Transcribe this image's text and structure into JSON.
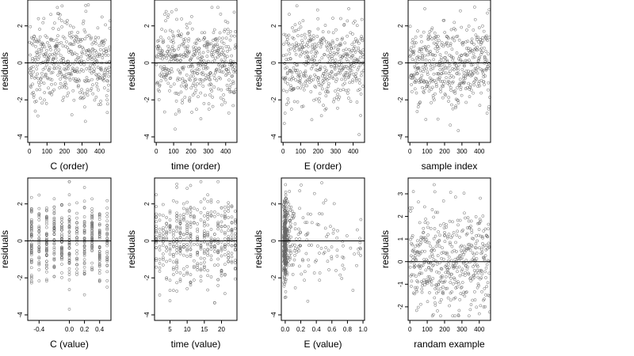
{
  "chart_data": [
    {
      "type": "scatter",
      "xlabel": "C (order)",
      "ylabel": "residuals",
      "xlim": [
        -10,
        465
      ],
      "ylim": [
        -4.3,
        3.4
      ],
      "xticks": [
        "0",
        "100",
        "200",
        "300",
        "400"
      ],
      "yticks": [
        "-4",
        "-2",
        "0",
        "2"
      ],
      "n_points": 460,
      "x_range": [
        1,
        460
      ],
      "y_range": [
        -4.1,
        3.2
      ],
      "x_kind": "index",
      "reference_line_y": 0
    },
    {
      "type": "scatter",
      "xlabel": "time (order)",
      "ylabel": "residuals",
      "xlim": [
        -10,
        465
      ],
      "ylim": [
        -4.3,
        3.4
      ],
      "xticks": [
        "0",
        "100",
        "200",
        "300",
        "400"
      ],
      "yticks": [
        "-4",
        "-2",
        "0",
        "2"
      ],
      "n_points": 460,
      "x_range": [
        1,
        460
      ],
      "y_range": [
        -4.0,
        3.0
      ],
      "x_kind": "index",
      "reference_line_y": 0
    },
    {
      "type": "scatter",
      "xlabel": "E (order)",
      "ylabel": "residuals",
      "xlim": [
        -10,
        465
      ],
      "ylim": [
        -4.3,
        3.4
      ],
      "xticks": [
        "0",
        "100",
        "200",
        "300",
        "400"
      ],
      "yticks": [
        "-4",
        "-2",
        "0",
        "2"
      ],
      "n_points": 460,
      "x_range": [
        1,
        460
      ],
      "y_range": [
        -4.0,
        3.2
      ],
      "x_kind": "index",
      "reference_line_y": 0
    },
    {
      "type": "scatter",
      "xlabel": "sample index",
      "ylabel": "residuals",
      "xlim": [
        -10,
        465
      ],
      "ylim": [
        -4.3,
        3.4
      ],
      "xticks": [
        "0",
        "100",
        "200",
        "300",
        "400"
      ],
      "yticks": [
        "-4",
        "-2",
        "0",
        "2"
      ],
      "n_points": 460,
      "x_range": [
        1,
        460
      ],
      "y_range": [
        -4.0,
        3.2
      ],
      "x_kind": "index",
      "reference_line_y": 0
    },
    {
      "type": "scatter",
      "xlabel": "C (value)",
      "ylabel": "residuals",
      "xlim": [
        -0.55,
        0.55
      ],
      "ylim": [
        -4.3,
        3.4
      ],
      "xticks": [
        "-0.4",
        "0.0",
        "0.2",
        "0.4"
      ],
      "yticks": [
        "-4",
        "-2",
        "0",
        "2"
      ],
      "n_points": 460,
      "x_range": [
        -0.5,
        0.5
      ],
      "y_range": [
        -4.0,
        3.2
      ],
      "x_kind": "levels",
      "x_levels": [
        -0.5,
        -0.4,
        -0.3,
        -0.2,
        -0.1,
        0.0,
        0.1,
        0.2,
        0.3,
        0.4,
        0.5
      ],
      "reference_line_y": 0
    },
    {
      "type": "scatter",
      "xlabel": "time (value)",
      "ylabel": "residuals",
      "xlim": [
        0.5,
        24.5
      ],
      "ylim": [
        -4.3,
        3.4
      ],
      "xticks": [
        "5",
        "10",
        "15",
        "20"
      ],
      "yticks": [
        "-4",
        "-2",
        "0",
        "2"
      ],
      "n_points": 460,
      "x_range": [
        1,
        24
      ],
      "y_range": [
        -4.0,
        3.2
      ],
      "x_kind": "levels",
      "x_levels": [
        1,
        2,
        3,
        4,
        5,
        6,
        7,
        8,
        9,
        10,
        11,
        12,
        13,
        14,
        15,
        16,
        17,
        18,
        19,
        20,
        21,
        22,
        23,
        24
      ],
      "reference_line_y": 0
    },
    {
      "type": "scatter",
      "xlabel": "E (value)",
      "ylabel": "residuals",
      "xlim": [
        -0.05,
        1.02
      ],
      "ylim": [
        -4.3,
        3.4
      ],
      "xticks": [
        "0.0",
        "0.2",
        "0.4",
        "0.6",
        "0.8",
        "1.0"
      ],
      "yticks": [
        "-4",
        "-2",
        "0",
        "2"
      ],
      "n_points": 460,
      "x_range": [
        -0.02,
        1.0
      ],
      "y_range": [
        -4.1,
        3.2
      ],
      "x_kind": "skewed",
      "reference_line_y": 0
    },
    {
      "type": "scatter",
      "xlabel": "randam example",
      "ylabel": "residuals",
      "xlim": [
        -10,
        465
      ],
      "ylim": [
        -2.6,
        3.7
      ],
      "xticks": [
        "0",
        "100",
        "200",
        "300",
        "400"
      ],
      "yticks": [
        "-2",
        "-1",
        "0",
        "1",
        "2",
        "3"
      ],
      "n_points": 460,
      "x_range": [
        1,
        460
      ],
      "y_range": [
        -2.4,
        3.5
      ],
      "x_kind": "index",
      "reference_line_y": 0
    }
  ]
}
